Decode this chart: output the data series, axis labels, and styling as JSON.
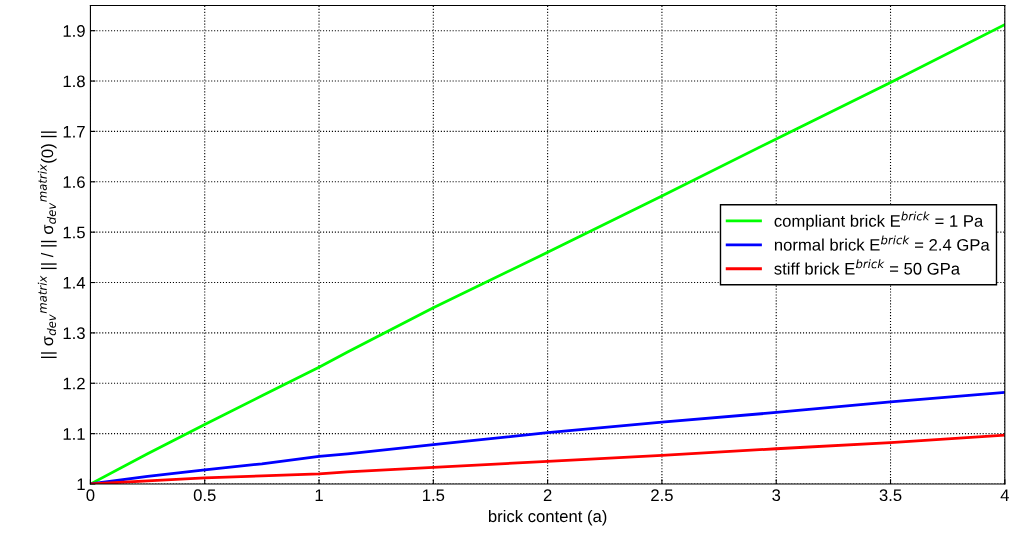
{
  "chart_data": {
    "type": "line",
    "xlabel": "brick content (a)",
    "ylabel": "|| σ$_{dev}$$^{matrix}$ || / || σ$_{dev}$$^{matrix}$(0) ||",
    "x": [
      0,
      0.25,
      0.5,
      0.75,
      1,
      1.125,
      1.5,
      2,
      2.5,
      3,
      3.5,
      4
    ],
    "series": [
      {
        "name": "compliant brick E$^{brick}$ = 1 Pa",
        "color": "#00ff00",
        "values": [
          1,
          1.06,
          1.118,
          1.175,
          1.232,
          1.262,
          1.35,
          1.46,
          1.572,
          1.685,
          1.797,
          1.912
        ]
      },
      {
        "name": "normal brick E$^{brick}$ = 2.4 GPa",
        "color": "#0000ff",
        "values": [
          1,
          1.015,
          1.028,
          1.04,
          1.055,
          1.06,
          1.078,
          1.102,
          1.123,
          1.142,
          1.163,
          1.182
        ]
      },
      {
        "name": "stiff brick E$^{brick}$ = 50 GPa",
        "color": "#ff0000",
        "values": [
          1,
          1.006,
          1.012,
          1.016,
          1.02,
          1.024,
          1.033,
          1.045,
          1.057,
          1.07,
          1.082,
          1.097
        ]
      }
    ],
    "xlim": [
      0,
      4
    ],
    "xticks": [
      0,
      0.5,
      1,
      1.5,
      2,
      2.5,
      3,
      3.5,
      4
    ],
    "ylim": [
      1,
      1.95
    ],
    "yticks": [
      1,
      1.1,
      1.2,
      1.3,
      1.4,
      1.5,
      1.6,
      1.7,
      1.8,
      1.9
    ],
    "grid": true,
    "legend": "center right",
    "line_style": "solid",
    "marker": "none"
  }
}
